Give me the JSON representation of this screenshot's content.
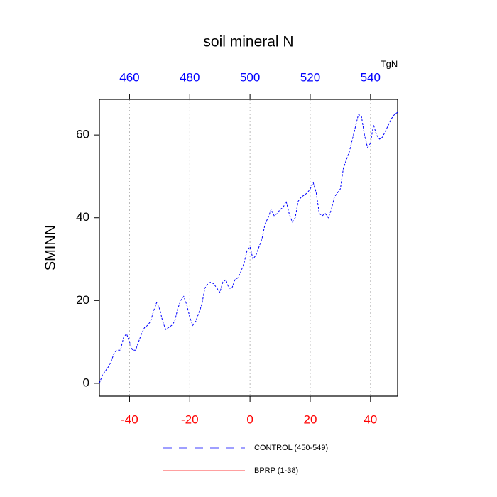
{
  "chart_data": {
    "type": "line",
    "title": "soil mineral N",
    "y_label": "SMINN",
    "x2_unit": "TgN",
    "xlim": [
      -50,
      49
    ],
    "xticks": [
      -40,
      -20,
      0,
      20,
      40
    ],
    "x_tick_color": "#ff0000",
    "x2lim": [
      450,
      549
    ],
    "x2ticks": [
      460,
      480,
      500,
      520,
      540
    ],
    "x2_tick_color": "#0000ff",
    "ylim": [
      -3.1,
      68.6
    ],
    "yticks": [
      0,
      20,
      40,
      60
    ],
    "grid": "x",
    "x": [
      -50,
      -49,
      -48,
      -47,
      -46,
      -45,
      -44,
      -43,
      -42,
      -41,
      -40,
      -39,
      -38,
      -37,
      -36,
      -35,
      -34,
      -33,
      -32,
      -31,
      -30,
      -29,
      -28,
      -27,
      -26,
      -25,
      -24,
      -23,
      -22,
      -21,
      -20,
      -19,
      -18,
      -17,
      -16,
      -15,
      -14,
      -13,
      -12,
      -11,
      -10,
      -9,
      -8,
      -7,
      -6,
      -5,
      -4,
      -3,
      -2,
      -1,
      0,
      1,
      2,
      3,
      4,
      5,
      6,
      7,
      8,
      9,
      10,
      11,
      12,
      13,
      14,
      15,
      16,
      17,
      18,
      19,
      20,
      21,
      22,
      23,
      24,
      25,
      26,
      27,
      28,
      29,
      30,
      31,
      32,
      33,
      34,
      35,
      36,
      37,
      38,
      39,
      40,
      41,
      42,
      43,
      44,
      45,
      46,
      47,
      48,
      49
    ],
    "series": [
      {
        "name": "CONTROL (450-549)",
        "color": "#0000ff",
        "dash": true,
        "values": [
          0,
          2,
          3,
          4,
          5.5,
          7.5,
          8,
          8,
          11,
          12,
          10,
          8,
          8,
          10,
          12,
          13.5,
          14,
          15,
          17.5,
          19.5,
          18,
          15,
          13,
          13.5,
          14,
          15,
          18,
          20,
          21,
          19,
          16,
          14,
          15,
          17,
          19,
          23,
          24,
          24.5,
          24,
          23,
          22,
          24.5,
          25,
          23,
          23,
          25,
          25.5,
          27,
          29,
          32,
          33,
          30,
          31,
          33,
          35,
          38.5,
          40,
          42,
          40.5,
          41,
          42,
          42.5,
          44,
          41,
          39,
          40,
          44,
          45,
          45.5,
          46,
          47,
          48.5,
          46,
          41,
          40.5,
          41,
          40,
          42,
          45,
          46,
          47,
          52,
          54,
          56,
          59,
          62,
          65,
          64.5,
          60,
          57,
          58,
          62.5,
          60,
          59,
          59.5,
          61,
          62.5,
          64,
          65,
          65.5
        ]
      },
      {
        "name": "BPRP (1-38)",
        "color": "#ff0000",
        "dash": false,
        "values": [
          null,
          null,
          null,
          null,
          null,
          null,
          null,
          null,
          null,
          null,
          null,
          null,
          null,
          null,
          null,
          null,
          null,
          null,
          null,
          null,
          null,
          null,
          null,
          null,
          null,
          null,
          null,
          null,
          null,
          null,
          null,
          null,
          null,
          null,
          null,
          null,
          null,
          null,
          null,
          null,
          null,
          null,
          null,
          null,
          null,
          null,
          null,
          null,
          null,
          null,
          null,
          null,
          null,
          null,
          null,
          null,
          null,
          null,
          null,
          null,
          null,
          null,
          null,
          null,
          null,
          null,
          null,
          null,
          null,
          null,
          null,
          null,
          null,
          null,
          null,
          null,
          null,
          null,
          null,
          null,
          null,
          null,
          null,
          null,
          null,
          null,
          null,
          null,
          null,
          null,
          null,
          null,
          null,
          null,
          null,
          null,
          null,
          null,
          null,
          null
        ]
      }
    ]
  }
}
